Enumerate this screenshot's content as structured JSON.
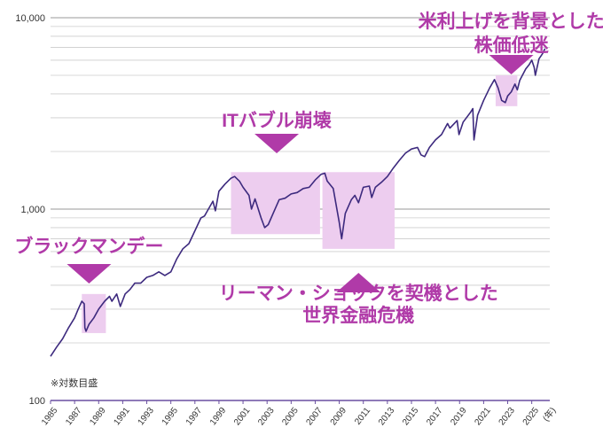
{
  "chart_data": {
    "type": "line",
    "y_scale": "log",
    "ylim": [
      100,
      10000
    ],
    "xlim": [
      1985,
      2026.5
    ],
    "y_ticks": [
      {
        "value": 100,
        "label": "100"
      },
      {
        "value": 1000,
        "label": "1,000"
      },
      {
        "value": 10000,
        "label": "10,000"
      }
    ],
    "x_ticks": [
      "1985",
      "1987",
      "1989",
      "1991",
      "1993",
      "1995",
      "1997",
      "1999",
      "2001",
      "2003",
      "2005",
      "2007",
      "2009",
      "2011",
      "2013",
      "2015",
      "2017",
      "2019",
      "2021",
      "2023",
      "2025"
    ],
    "x_unit_label": "(年)",
    "note": "※対数目盛",
    "grid": true,
    "colors": {
      "line": "#3d2a7e",
      "shade": "#edcdef",
      "accent": "#b03aa8",
      "grid": "#cccccc",
      "axis": "#6a4fa0"
    },
    "series": [
      {
        "values": [
          [
            1985.0,
            170
          ],
          [
            1985.5,
            190
          ],
          [
            1986.0,
            210
          ],
          [
            1986.5,
            240
          ],
          [
            1987.0,
            270
          ],
          [
            1987.3,
            300
          ],
          [
            1987.6,
            330
          ],
          [
            1987.8,
            320
          ],
          [
            1987.85,
            240
          ],
          [
            1987.95,
            230
          ],
          [
            1988.2,
            250
          ],
          [
            1988.6,
            270
          ],
          [
            1989.0,
            300
          ],
          [
            1989.5,
            330
          ],
          [
            1989.9,
            350
          ],
          [
            1990.1,
            330
          ],
          [
            1990.5,
            360
          ],
          [
            1990.8,
            310
          ],
          [
            1991.2,
            360
          ],
          [
            1991.6,
            380
          ],
          [
            1992.0,
            410
          ],
          [
            1992.5,
            410
          ],
          [
            1993.0,
            440
          ],
          [
            1993.5,
            450
          ],
          [
            1994.0,
            470
          ],
          [
            1994.5,
            450
          ],
          [
            1995.0,
            470
          ],
          [
            1995.5,
            550
          ],
          [
            1996.0,
            620
          ],
          [
            1996.5,
            660
          ],
          [
            1997.0,
            770
          ],
          [
            1997.5,
            900
          ],
          [
            1997.8,
            920
          ],
          [
            1998.0,
            970
          ],
          [
            1998.5,
            1100
          ],
          [
            1998.7,
            980
          ],
          [
            1999.0,
            1240
          ],
          [
            1999.5,
            1350
          ],
          [
            2000.0,
            1450
          ],
          [
            2000.3,
            1480
          ],
          [
            2000.7,
            1400
          ],
          [
            2001.0,
            1300
          ],
          [
            2001.5,
            1180
          ],
          [
            2001.7,
            1000
          ],
          [
            2002.0,
            1130
          ],
          [
            2002.5,
            900
          ],
          [
            2002.8,
            800
          ],
          [
            2003.1,
            830
          ],
          [
            2003.6,
            980
          ],
          [
            2004.0,
            1120
          ],
          [
            2004.5,
            1140
          ],
          [
            2005.0,
            1200
          ],
          [
            2005.5,
            1220
          ],
          [
            2006.0,
            1280
          ],
          [
            2006.5,
            1300
          ],
          [
            2007.0,
            1420
          ],
          [
            2007.5,
            1520
          ],
          [
            2007.8,
            1540
          ],
          [
            2008.0,
            1400
          ],
          [
            2008.5,
            1280
          ],
          [
            2008.8,
            1000
          ],
          [
            2009.0,
            850
          ],
          [
            2009.2,
            700
          ],
          [
            2009.5,
            950
          ],
          [
            2010.0,
            1120
          ],
          [
            2010.3,
            1180
          ],
          [
            2010.6,
            1080
          ],
          [
            2011.0,
            1300
          ],
          [
            2011.5,
            1320
          ],
          [
            2011.7,
            1150
          ],
          [
            2012.0,
            1300
          ],
          [
            2012.5,
            1380
          ],
          [
            2013.0,
            1480
          ],
          [
            2013.5,
            1640
          ],
          [
            2014.0,
            1800
          ],
          [
            2014.5,
            1960
          ],
          [
            2015.0,
            2060
          ],
          [
            2015.5,
            2100
          ],
          [
            2015.8,
            1920
          ],
          [
            2016.1,
            1880
          ],
          [
            2016.5,
            2100
          ],
          [
            2017.0,
            2300
          ],
          [
            2017.5,
            2450
          ],
          [
            2018.0,
            2800
          ],
          [
            2018.2,
            2650
          ],
          [
            2018.8,
            2900
          ],
          [
            2018.95,
            2450
          ],
          [
            2019.3,
            2850
          ],
          [
            2019.9,
            3200
          ],
          [
            2020.1,
            3350
          ],
          [
            2020.2,
            2300
          ],
          [
            2020.5,
            3100
          ],
          [
            2021.0,
            3700
          ],
          [
            2021.5,
            4300
          ],
          [
            2021.9,
            4750
          ],
          [
            2022.2,
            4300
          ],
          [
            2022.5,
            3700
          ],
          [
            2022.8,
            3600
          ],
          [
            2023.0,
            3900
          ],
          [
            2023.3,
            4100
          ],
          [
            2023.6,
            4500
          ],
          [
            2023.8,
            4200
          ],
          [
            2024.0,
            4700
          ],
          [
            2024.5,
            5400
          ],
          [
            2024.8,
            5700
          ],
          [
            2025.0,
            6000
          ],
          [
            2025.2,
            5500
          ],
          [
            2025.3,
            5000
          ],
          [
            2025.6,
            6100
          ],
          [
            2025.9,
            6500
          ],
          [
            2026.1,
            6900
          ]
        ]
      }
    ],
    "shaded_regions": [
      {
        "x": [
          1987.6,
          1989.6
        ],
        "y": [
          225,
          360
        ]
      },
      {
        "x": [
          2000.0,
          2007.4
        ],
        "y": [
          740,
          1560
        ]
      },
      {
        "x": [
          2007.6,
          2013.6
        ],
        "y": [
          620,
          1560
        ]
      },
      {
        "x": [
          2022.0,
          2023.8
        ],
        "y": [
          3450,
          5000
        ]
      }
    ],
    "annotations": [
      {
        "lines": [
          "ブラックマンデー"
        ],
        "x": 1988.2,
        "y": 320
      },
      {
        "lines": [
          "ITバブル崩壊"
        ],
        "x": 2003.8,
        "y": 1350
      },
      {
        "lines": [
          "リーマン・ショックを契機とした",
          "世界金融危機"
        ],
        "x": 2010.6,
        "y": 600
      },
      {
        "lines": [
          "米利上げを背景とした",
          "株価低迷"
        ],
        "x": 2023.3,
        "y": 5300
      }
    ]
  }
}
